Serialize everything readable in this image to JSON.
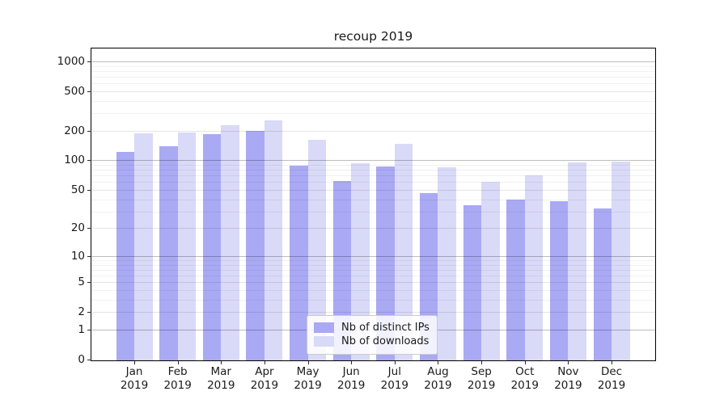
{
  "title": "recoup 2019",
  "legend": {
    "items": [
      {
        "label": "Nb of distinct IPs",
        "color": "#a9a9f4"
      },
      {
        "label": "Nb of downloads",
        "color": "#d9d9f8"
      }
    ]
  },
  "chart_data": {
    "type": "bar",
    "title": "recoup 2019",
    "categories": [
      "Jan",
      "Feb",
      "Mar",
      "Apr",
      "May",
      "Jun",
      "Jul",
      "Aug",
      "Sep",
      "Oct",
      "Nov",
      "Dec"
    ],
    "category_year": "2019",
    "series": [
      {
        "name": "Nb of distinct IPs",
        "color": "#a9a9f4",
        "values": [
          122,
          139,
          184,
          199,
          88,
          62,
          87,
          46,
          35,
          40,
          38,
          32
        ]
      },
      {
        "name": "Nb of downloads",
        "color": "#d9d9f8",
        "values": [
          188,
          192,
          227,
          254,
          162,
          94,
          147,
          85,
          60,
          70,
          95,
          97
        ]
      }
    ],
    "yscale": "log1p",
    "y_ticks": [
      0,
      1,
      2,
      5,
      10,
      20,
      50,
      100,
      200,
      500,
      1000
    ],
    "major_gridlines": [
      1,
      10,
      100,
      1000
    ],
    "ylim": [
      0,
      1350
    ],
    "grid": true,
    "legend_position": "lower-center",
    "xlabel": "",
    "ylabel": ""
  }
}
